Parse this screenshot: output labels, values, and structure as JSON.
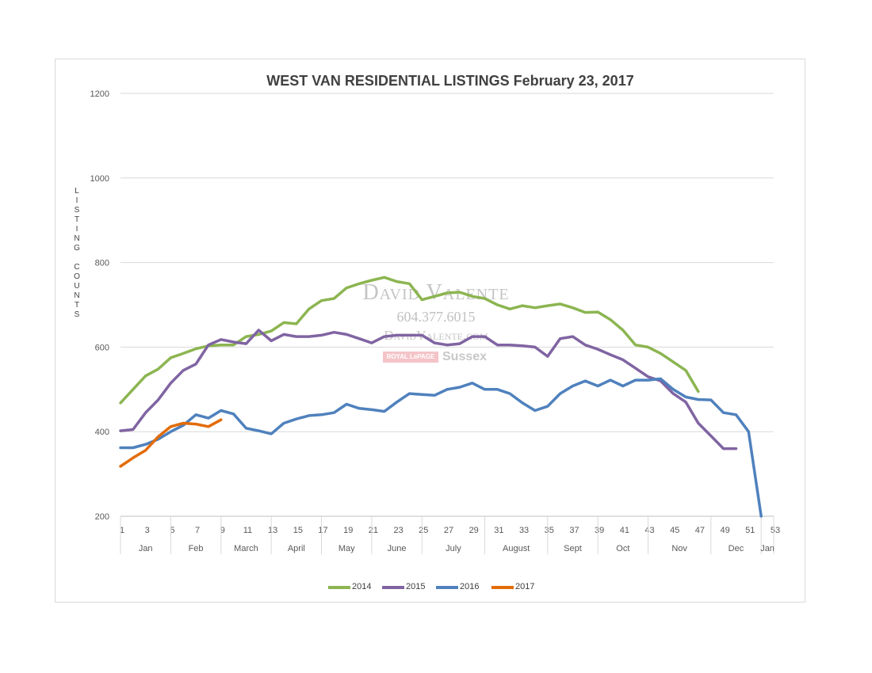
{
  "chart_data": {
    "type": "line",
    "title": "WEST VAN RESIDENTIAL LISTINGS February 23, 2017",
    "ylabel": "LISTING COUNTS",
    "xlabel": "",
    "ylim": [
      200,
      1200
    ],
    "yticks": [
      200,
      400,
      600,
      800,
      1000,
      1200
    ],
    "xlim": [
      1,
      53
    ],
    "xticks": [
      "1",
      "3",
      "5",
      "7",
      "9",
      "11",
      "13",
      "15",
      "17",
      "19",
      "21",
      "23",
      "25",
      "27",
      "29",
      "31",
      "33",
      "35",
      "37",
      "39",
      "41",
      "43",
      "45",
      "47",
      "49",
      "51",
      "53"
    ],
    "months": [
      {
        "label": "Jan",
        "start": 1,
        "end": 5
      },
      {
        "label": "Feb",
        "start": 5,
        "end": 9
      },
      {
        "label": "March",
        "start": 9,
        "end": 13
      },
      {
        "label": "April",
        "start": 13,
        "end": 17
      },
      {
        "label": "May",
        "start": 17,
        "end": 21
      },
      {
        "label": "June",
        "start": 21,
        "end": 25
      },
      {
        "label": "July",
        "start": 25,
        "end": 30
      },
      {
        "label": "August",
        "start": 30,
        "end": 35
      },
      {
        "label": "Sept",
        "start": 35,
        "end": 39
      },
      {
        "label": "Oct",
        "start": 39,
        "end": 43
      },
      {
        "label": "Nov",
        "start": 43,
        "end": 48
      },
      {
        "label": "Dec",
        "start": 48,
        "end": 52
      },
      {
        "label": "Jan",
        "start": 52,
        "end": 53
      }
    ],
    "grid": true,
    "legend_position": "bottom",
    "series": [
      {
        "name": "2014",
        "color": "#8cb551",
        "start_week": 1,
        "values": [
          468,
          500,
          532,
          548,
          575,
          585,
          596,
          603,
          605,
          605,
          625,
          630,
          638,
          658,
          655,
          690,
          710,
          715,
          740,
          750,
          758,
          765,
          755,
          750,
          712,
          720,
          728,
          730,
          720,
          715,
          700,
          690,
          698,
          693,
          698,
          702,
          693,
          682,
          683,
          665,
          640,
          605,
          600,
          585,
          565,
          545,
          495
        ]
      },
      {
        "name": "2015",
        "color": "#8064a2",
        "start_week": 1,
        "values": [
          402,
          405,
          445,
          475,
          515,
          545,
          560,
          605,
          618,
          612,
          608,
          640,
          615,
          630,
          625,
          625,
          628,
          635,
          630,
          620,
          610,
          625,
          628,
          628,
          628,
          610,
          605,
          608,
          625,
          625,
          605,
          605,
          603,
          600,
          578,
          620,
          625,
          605,
          595,
          582,
          570,
          550,
          530,
          520,
          490,
          470,
          420,
          390,
          360,
          360
        ]
      },
      {
        "name": "2016",
        "color": "#4f81bd",
        "start_week": 1,
        "values": [
          362,
          362,
          370,
          382,
          400,
          415,
          440,
          432,
          450,
          442,
          408,
          402,
          395,
          420,
          430,
          438,
          440,
          445,
          465,
          455,
          452,
          448,
          470,
          490,
          488,
          486,
          500,
          505,
          515,
          500,
          500,
          490,
          468,
          450,
          460,
          490,
          508,
          520,
          508,
          522,
          508,
          522,
          522,
          525,
          500,
          482,
          476,
          475,
          445,
          440,
          400,
          200
        ]
      },
      {
        "name": "2017",
        "color": "#e36c09",
        "start_week": 1,
        "values": [
          318,
          338,
          356,
          388,
          412,
          420,
          418,
          412,
          428
        ]
      }
    ]
  },
  "watermark": {
    "name": "David Valente",
    "phone": "604.377.6015",
    "site": "DavidValente.com",
    "brand_box": "ROYAL LePAGE",
    "brand": "Sussex"
  }
}
